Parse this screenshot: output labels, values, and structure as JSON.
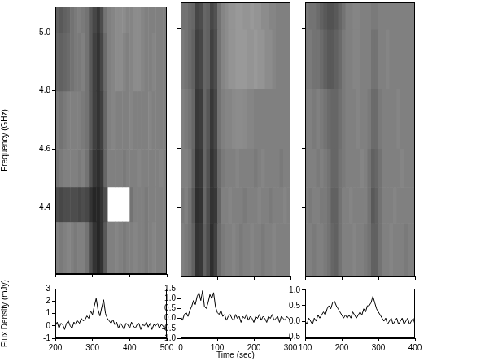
{
  "chart_data": [
    {
      "type": "heatmap",
      "color": "#000000",
      "grid": false,
      "tick_labels": "y",
      "ylabel": "Frequency (GHz)",
      "xlim": [
        200,
        500
      ],
      "xticks": [
        200,
        300,
        400,
        500
      ],
      "ylim": [
        4.17,
        5.09
      ],
      "yticks": [
        4.4,
        4.6,
        4.8,
        {
          "value": 5,
          "label": "5.0"
        }
      ],
      "spectrum": {
        "time_edges": [
          200,
          210,
          220,
          230,
          240,
          250,
          260,
          270,
          280,
          290,
          300,
          310,
          320,
          330,
          340,
          350,
          360,
          370,
          380,
          390,
          400,
          410,
          420,
          430,
          440,
          450,
          460,
          470,
          480,
          490,
          500
        ],
        "frequency_edges": [
          4.17,
          4.35,
          4.47,
          4.6,
          4.8,
          5.0,
          5.09
        ],
        "cells": [
          [
            0.5,
            0.52,
            0.5,
            0.48,
            0.5,
            0.52,
            0.5,
            0.5,
            0.55,
            0.7,
            0.8,
            0.85,
            0.8,
            0.65,
            0.5,
            0.5,
            0.48,
            0.5,
            0.52,
            0.5,
            0.5,
            0.48,
            0.5,
            0.5,
            0.52,
            0.5,
            0.48,
            0.5,
            0.5,
            0.5
          ],
          [
            0.7,
            0.72,
            0.7,
            0.7,
            0.7,
            0.7,
            0.72,
            0.7,
            0.72,
            0.8,
            0.85,
            0.85,
            0.8,
            0.7,
            null,
            null,
            null,
            null,
            null,
            null,
            0.55,
            0.5,
            0.5,
            0.5,
            0.52,
            0.5,
            0.5,
            0.5,
            0.5,
            0.5
          ],
          [
            0.55,
            0.52,
            0.5,
            0.5,
            0.5,
            0.5,
            0.52,
            0.5,
            0.55,
            0.68,
            0.78,
            0.82,
            0.78,
            0.6,
            0.5,
            0.5,
            0.5,
            0.5,
            0.52,
            0.5,
            0.5,
            0.5,
            0.48,
            0.5,
            0.5,
            0.5,
            0.5,
            0.5,
            0.48,
            0.5
          ],
          [
            0.52,
            0.55,
            0.52,
            0.5,
            0.5,
            0.5,
            0.5,
            0.52,
            0.55,
            0.65,
            0.75,
            0.8,
            0.75,
            0.6,
            0.5,
            0.48,
            0.5,
            0.5,
            0.5,
            0.5,
            0.48,
            0.5,
            0.5,
            0.5,
            0.5,
            0.48,
            0.5,
            0.5,
            0.5,
            0.5
          ],
          [
            0.6,
            0.62,
            0.6,
            0.58,
            0.55,
            0.52,
            0.52,
            0.5,
            0.55,
            0.65,
            0.75,
            0.8,
            0.72,
            0.58,
            0.5,
            0.48,
            0.45,
            0.45,
            0.48,
            0.5,
            0.48,
            0.45,
            0.45,
            0.48,
            0.5,
            0.5,
            0.48,
            0.5,
            0.5,
            0.5
          ],
          [
            0.62,
            0.65,
            0.62,
            0.6,
            0.55,
            0.52,
            0.5,
            0.52,
            0.55,
            0.65,
            0.72,
            0.78,
            0.7,
            0.55,
            0.5,
            0.48,
            0.45,
            0.45,
            0.45,
            0.48,
            0.48,
            0.45,
            0.45,
            0.48,
            0.5,
            0.5,
            0.5,
            0.5,
            0.5,
            0.5
          ]
        ]
      }
    },
    {
      "type": "heatmap",
      "color": "#000000",
      "grid": false,
      "tick_labels": false,
      "xlim": [
        0,
        300
      ],
      "xticks": [
        0,
        100,
        200,
        300
      ],
      "ylim": [
        4.17,
        5.09
      ],
      "yticks": [
        4.4,
        4.6,
        4.8,
        {
          "value": 5,
          "label": "5.0"
        }
      ],
      "spectrum": {
        "time_edges": [
          0,
          10,
          20,
          30,
          40,
          50,
          60,
          70,
          80,
          90,
          100,
          110,
          120,
          130,
          140,
          150,
          160,
          170,
          180,
          190,
          200,
          210,
          220,
          230,
          240,
          250,
          260,
          270,
          280,
          290,
          300
        ],
        "frequency_edges": [
          4.17,
          4.35,
          4.47,
          4.6,
          4.8,
          5.0,
          5.09
        ],
        "cells": [
          [
            0.5,
            0.52,
            0.55,
            0.62,
            0.8,
            0.78,
            0.62,
            0.7,
            0.82,
            0.75,
            0.58,
            0.52,
            0.5,
            0.5,
            0.48,
            0.5,
            0.52,
            0.5,
            0.5,
            0.48,
            0.5,
            0.5,
            0.52,
            0.5,
            0.5,
            0.48,
            0.5,
            0.5,
            0.5,
            0.5
          ],
          [
            0.52,
            0.5,
            0.55,
            0.65,
            0.82,
            0.8,
            0.6,
            0.7,
            0.8,
            0.78,
            0.6,
            0.5,
            0.5,
            0.48,
            0.5,
            0.5,
            0.5,
            0.52,
            0.5,
            0.5,
            0.5,
            0.48,
            0.5,
            0.5,
            0.52,
            0.5,
            0.5,
            0.5,
            0.48,
            0.5
          ],
          [
            0.5,
            0.5,
            0.52,
            0.62,
            0.8,
            0.78,
            0.6,
            0.68,
            0.8,
            0.75,
            0.58,
            0.52,
            0.5,
            0.5,
            0.5,
            0.48,
            0.5,
            0.5,
            0.5,
            0.5,
            0.52,
            0.5,
            0.48,
            0.5,
            0.5,
            0.5,
            0.5,
            0.52,
            0.5,
            0.5
          ],
          [
            0.5,
            0.52,
            0.55,
            0.6,
            0.78,
            0.76,
            0.6,
            0.66,
            0.78,
            0.72,
            0.55,
            0.5,
            0.48,
            0.48,
            0.46,
            0.45,
            0.45,
            0.46,
            0.48,
            0.48,
            0.5,
            0.5,
            0.5,
            0.5,
            0.5,
            0.5,
            0.5,
            0.5,
            0.5,
            0.5
          ],
          [
            0.52,
            0.55,
            0.58,
            0.62,
            0.75,
            0.72,
            0.6,
            0.62,
            0.75,
            0.7,
            0.55,
            0.48,
            0.45,
            0.42,
            0.42,
            0.4,
            0.4,
            0.4,
            0.42,
            0.42,
            0.4,
            0.42,
            0.42,
            0.45,
            0.45,
            0.48,
            0.5,
            0.5,
            0.5,
            0.5
          ],
          [
            0.55,
            0.55,
            0.58,
            0.6,
            0.72,
            0.7,
            0.6,
            0.62,
            0.72,
            0.68,
            0.55,
            0.48,
            0.45,
            0.42,
            0.42,
            0.4,
            0.4,
            0.42,
            0.42,
            0.4,
            0.42,
            0.42,
            0.45,
            0.45,
            0.48,
            0.48,
            0.5,
            0.5,
            0.5,
            0.5
          ]
        ]
      }
    },
    {
      "type": "heatmap",
      "color": "#000000",
      "grid": false,
      "tick_labels": false,
      "xlim": [
        100,
        400
      ],
      "xticks": [
        100,
        200,
        300,
        400
      ],
      "ylim": [
        4.17,
        5.09
      ],
      "yticks": [
        4.4,
        4.6,
        4.8,
        {
          "value": 5,
          "label": "5.0"
        }
      ],
      "spectrum": {
        "time_edges": [
          100,
          110,
          120,
          130,
          140,
          150,
          160,
          170,
          180,
          190,
          200,
          210,
          220,
          230,
          240,
          250,
          260,
          270,
          280,
          290,
          300,
          310,
          320,
          330,
          340,
          350,
          360,
          370,
          380,
          390,
          400
        ],
        "frequency_edges": [
          4.17,
          4.35,
          4.47,
          4.6,
          4.8,
          5.0,
          5.09
        ],
        "cells": [
          [
            0.5,
            0.5,
            0.52,
            0.5,
            0.5,
            0.52,
            0.55,
            0.6,
            0.62,
            0.55,
            0.5,
            0.5,
            0.5,
            0.48,
            0.5,
            0.5,
            0.52,
            0.55,
            0.62,
            0.62,
            0.55,
            0.5,
            0.5,
            0.48,
            0.5,
            0.5,
            0.5,
            0.52,
            0.5,
            0.5
          ],
          [
            0.5,
            0.52,
            0.5,
            0.5,
            0.52,
            0.52,
            0.55,
            0.62,
            0.62,
            0.55,
            0.5,
            0.5,
            0.48,
            0.5,
            0.5,
            0.5,
            0.5,
            0.55,
            0.65,
            0.62,
            0.55,
            0.5,
            0.5,
            0.5,
            0.48,
            0.5,
            0.5,
            0.5,
            0.5,
            0.5
          ],
          [
            0.5,
            0.5,
            0.5,
            0.52,
            0.5,
            0.52,
            0.55,
            0.6,
            0.6,
            0.55,
            0.52,
            0.5,
            0.5,
            0.5,
            0.5,
            0.48,
            0.5,
            0.55,
            0.62,
            0.6,
            0.55,
            0.5,
            0.5,
            0.5,
            0.5,
            0.5,
            0.48,
            0.5,
            0.5,
            0.5
          ],
          [
            0.5,
            0.5,
            0.52,
            0.5,
            0.52,
            0.55,
            0.58,
            0.6,
            0.6,
            0.56,
            0.52,
            0.5,
            0.5,
            0.5,
            0.48,
            0.5,
            0.5,
            0.52,
            0.58,
            0.58,
            0.52,
            0.5,
            0.5,
            0.5,
            0.5,
            0.48,
            0.5,
            0.5,
            0.5,
            0.5
          ],
          [
            0.52,
            0.52,
            0.55,
            0.55,
            0.58,
            0.62,
            0.65,
            0.65,
            0.62,
            0.58,
            0.52,
            0.5,
            0.5,
            0.48,
            0.48,
            0.5,
            0.5,
            0.5,
            0.55,
            0.55,
            0.5,
            0.5,
            0.48,
            0.5,
            0.5,
            0.5,
            0.5,
            0.5,
            0.5,
            0.5
          ],
          [
            0.52,
            0.55,
            0.55,
            0.58,
            0.62,
            0.65,
            0.68,
            0.68,
            0.65,
            0.6,
            0.55,
            0.5,
            0.5,
            0.48,
            0.48,
            0.5,
            0.5,
            0.5,
            0.52,
            0.52,
            0.5,
            0.5,
            0.5,
            0.5,
            0.5,
            0.5,
            0.5,
            0.5,
            0.5,
            0.5
          ]
        ]
      }
    },
    {
      "type": "line",
      "color": "#000000",
      "grid": false,
      "ylabel": "Flux Density (mJy)",
      "xlim": [
        200,
        500
      ],
      "xticks": [
        200,
        300,
        400,
        500
      ],
      "ylim": [
        -1,
        3
      ],
      "yticks": [
        -1,
        0,
        1,
        2,
        3
      ],
      "x": [
        200,
        205,
        210,
        215,
        220,
        225,
        230,
        235,
        240,
        245,
        250,
        255,
        260,
        265,
        270,
        275,
        280,
        285,
        290,
        295,
        300,
        305,
        310,
        315,
        320,
        325,
        330,
        335,
        340,
        345,
        350,
        355,
        360,
        365,
        370,
        375,
        380,
        385,
        390,
        395,
        400,
        405,
        410,
        415,
        420,
        425,
        430,
        435,
        440,
        445,
        450,
        455,
        460,
        465,
        470,
        475,
        480,
        485,
        490,
        495,
        500
      ],
      "values": [
        0,
        0.3,
        -0.2,
        0.2,
        0.1,
        -0.3,
        0.2,
        0.4,
        0,
        -0.2,
        0.3,
        0.1,
        0.4,
        0.2,
        0.6,
        0.4,
        0.5,
        0.8,
        0.6,
        1.2,
        0.9,
        1.6,
        2.2,
        1.3,
        0.8,
        1.5,
        2.1,
        1.0,
        0.6,
        0.4,
        0.2,
        0.5,
        0.1,
        0.3,
        -0.2,
        0.2,
        0,
        -0.3,
        0.2,
        0.1,
        -0.2,
        0.3,
        0,
        -0.2,
        0.1,
        0.2,
        -0.3,
        0.1,
        0,
        0.3,
        -0.1,
        0.2,
        -0.3,
        0.1,
        0,
        0.2,
        -0.2,
        0.1,
        0,
        -0.3,
        0.1
      ]
    },
    {
      "type": "line",
      "color": "#000000",
      "grid": false,
      "xlabel": "Time (sec)",
      "xlim": [
        0,
        300
      ],
      "xticks": [
        0,
        100,
        200,
        300
      ],
      "ylim": [
        -1,
        1.5
      ],
      "yticks": [
        {
          "value": -1,
          "label": "-1.0"
        },
        -0.5,
        {
          "value": 0,
          "label": "0.0"
        },
        0.5,
        {
          "value": 1,
          "label": "1.0"
        },
        1.5
      ],
      "x": [
        0,
        5,
        10,
        15,
        20,
        25,
        30,
        35,
        40,
        45,
        50,
        55,
        60,
        65,
        70,
        75,
        80,
        85,
        90,
        95,
        100,
        105,
        110,
        115,
        120,
        125,
        130,
        135,
        140,
        145,
        150,
        155,
        160,
        165,
        170,
        175,
        180,
        185,
        190,
        195,
        200,
        205,
        210,
        215,
        220,
        225,
        230,
        235,
        240,
        245,
        250,
        255,
        260,
        265,
        270,
        275,
        280,
        285,
        290,
        295,
        300
      ],
      "values": [
        0.1,
        -0.1,
        0.2,
        0.3,
        0.1,
        0.4,
        0.6,
        0.9,
        0.7,
        1.1,
        1.3,
        0.9,
        1.4,
        0.6,
        0.5,
        0.8,
        1.2,
        1.0,
        1.3,
        0.6,
        0.3,
        0.2,
        0.4,
        0.1,
        0.2,
        -0.1,
        0.1,
        0.2,
        0,
        -0.1,
        0.2,
        0,
        0.1,
        -0.2,
        0.1,
        0,
        0.2,
        -0.1,
        0.1,
        0,
        -0.2,
        0.1,
        0,
        0.2,
        -0.1,
        0.1,
        0,
        -0.2,
        0.1,
        0,
        0.2,
        -0.1,
        0,
        0.1,
        -0.2,
        0.1,
        0,
        -0.1,
        0.1,
        0,
        -0.1
      ]
    },
    {
      "type": "line",
      "color": "#000000",
      "grid": false,
      "xlim": [
        100,
        400
      ],
      "xticks": [
        100,
        200,
        300,
        400
      ],
      "ylim": [
        -0.55,
        1.05
      ],
      "yticks": [
        -0.5,
        {
          "value": 0,
          "label": "0.0"
        },
        0.5,
        {
          "value": 1,
          "label": "1.0"
        }
      ],
      "x": [
        100,
        105,
        110,
        115,
        120,
        125,
        130,
        135,
        140,
        145,
        150,
        155,
        160,
        165,
        170,
        175,
        180,
        185,
        190,
        195,
        200,
        205,
        210,
        215,
        220,
        225,
        230,
        235,
        240,
        245,
        250,
        255,
        260,
        265,
        270,
        275,
        280,
        285,
        290,
        295,
        300,
        305,
        310,
        315,
        320,
        325,
        330,
        335,
        340,
        345,
        350,
        355,
        360,
        365,
        370,
        375,
        380,
        385,
        390,
        395,
        400
      ],
      "values": [
        0,
        -0.1,
        0.1,
        0,
        -0.1,
        0.1,
        0,
        0.2,
        0.1,
        0.2,
        0.3,
        0.2,
        0.4,
        0.5,
        0.4,
        0.6,
        0.65,
        0.5,
        0.4,
        0.3,
        0.2,
        0.1,
        0.2,
        0.1,
        0.2,
        0.1,
        0.3,
        0.2,
        0.1,
        0.2,
        0.3,
        0.2,
        0.4,
        0.3,
        0.5,
        0.5,
        0.6,
        0.8,
        0.6,
        0.4,
        0.3,
        0.2,
        0.1,
        0,
        0.1,
        -0.1,
        0,
        0.1,
        -0.1,
        0,
        0.1,
        -0.1,
        0,
        0.1,
        -0.1,
        0,
        0.1,
        -0.1,
        0,
        0.1,
        -0.1
      ]
    }
  ]
}
